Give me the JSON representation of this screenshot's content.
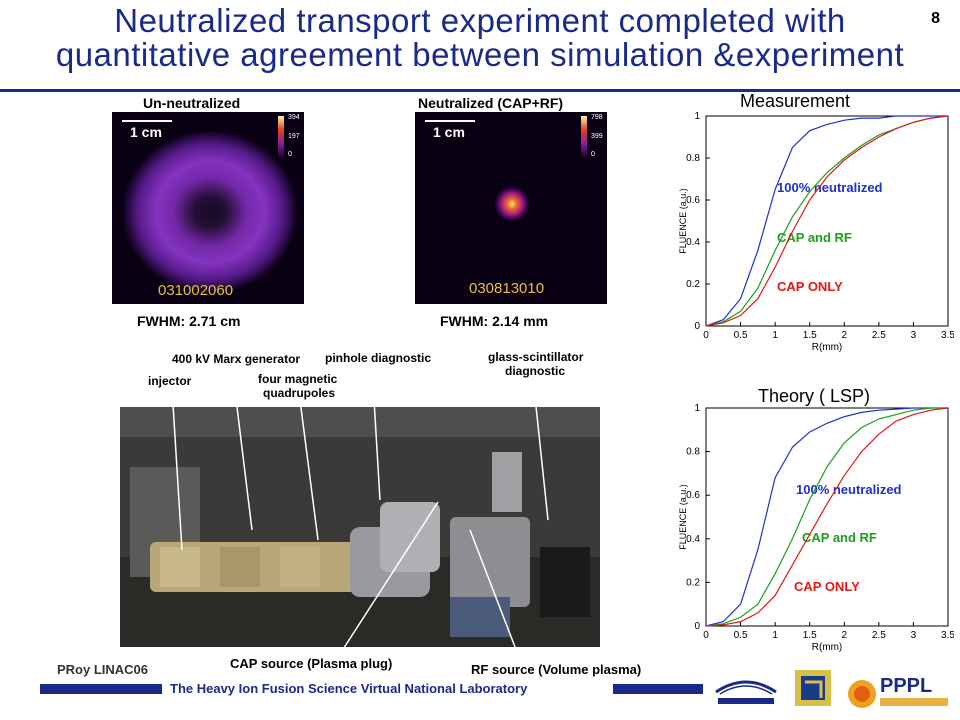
{
  "slide": {
    "title_line1": "Neutralized transport experiment completed with",
    "title_line2": "quantitative agreement between simulation &experiment",
    "number": "8"
  },
  "images": {
    "left": {
      "header": "Un-neutralized",
      "scale": "1 cm",
      "colorbar_max": "394",
      "colorbar_mid": "197",
      "colorbar_min": "0",
      "shot_id": "031002060",
      "fwhm": "FWHM: 2.71 cm"
    },
    "right": {
      "header": "Neutralized (CAP+RF)",
      "scale": "1 cm",
      "colorbar_max": "798",
      "colorbar_mid": "399",
      "colorbar_min": "0",
      "shot_id": "030813010",
      "fwhm": "FWHM: 2.14 mm"
    }
  },
  "photo_callouts": {
    "marx": "400 kV Marx generator",
    "pinhole": "pinhole diagnostic",
    "glass1": "glass-scintillator",
    "glass2": "diagnostic",
    "injector": "injector",
    "quads1": "four magnetic",
    "quads2": "quadrupoles",
    "cap_source": "CAP source (Plasma plug)",
    "rf_source": "RF source (Volume plasma)"
  },
  "footer": {
    "author": "PRoy LINAC06",
    "lab": "The Heavy Ion Fusion Science Virtual National Laboratory",
    "logos": [
      "BERKELEY LAB",
      "LLNL",
      "PPPL"
    ]
  },
  "colors": {
    "title": "#1a2a8a",
    "blue": "#1f2fd0",
    "green": "#1aa01a",
    "red": "#e01818"
  },
  "chart_data": [
    {
      "type": "line",
      "title": "Measurement",
      "xlabel": "R(mm)",
      "ylabel": "FLUENCE (a.u.)",
      "xlim": [
        0,
        3.5
      ],
      "ylim": [
        0,
        1
      ],
      "x_ticks": [
        "0",
        "0.5",
        "1",
        "1.5",
        "2",
        "2.5",
        "3",
        "3.5"
      ],
      "y_ticks": [
        "0",
        "0.2",
        "0.4",
        "0.6",
        "0.8",
        "1"
      ],
      "x": [
        0,
        0.25,
        0.5,
        0.75,
        1.0,
        1.25,
        1.5,
        1.75,
        2.0,
        2.25,
        2.5,
        2.75,
        3.0,
        3.25,
        3.5
      ],
      "series": [
        {
          "name": "100% neutralized",
          "color": "#1f2fd0",
          "values": [
            0,
            0.03,
            0.13,
            0.36,
            0.65,
            0.85,
            0.93,
            0.96,
            0.98,
            0.99,
            0.99,
            1.0,
            1.0,
            1.0,
            1.0
          ]
        },
        {
          "name": "CAP and RF",
          "color": "#1aa01a",
          "values": [
            0,
            0.02,
            0.07,
            0.18,
            0.36,
            0.52,
            0.64,
            0.73,
            0.8,
            0.86,
            0.91,
            0.94,
            0.97,
            0.99,
            1.0
          ]
        },
        {
          "name": "CAP ONLY",
          "color": "#e01818",
          "values": [
            0,
            0.015,
            0.05,
            0.13,
            0.28,
            0.45,
            0.6,
            0.71,
            0.79,
            0.85,
            0.9,
            0.94,
            0.97,
            0.99,
            1.0
          ]
        }
      ]
    },
    {
      "type": "line",
      "title": "Theory ( LSP)",
      "xlabel": "R(mm)",
      "ylabel": "FLUENCE (a.u.)",
      "xlim": [
        0,
        3.5
      ],
      "ylim": [
        0,
        1
      ],
      "x_ticks": [
        "0",
        "0.5",
        "1",
        "1.5",
        "2",
        "2.5",
        "3",
        "3.5"
      ],
      "y_ticks": [
        "0",
        "0.2",
        "0.4",
        "0.6",
        "0.8",
        "1"
      ],
      "x": [
        0,
        0.25,
        0.5,
        0.75,
        1.0,
        1.25,
        1.5,
        1.75,
        2.0,
        2.25,
        2.5,
        2.75,
        3.0,
        3.25,
        3.5
      ],
      "series": [
        {
          "name": "100% neutralized",
          "color": "#1f2fd0",
          "values": [
            0,
            0.02,
            0.1,
            0.35,
            0.68,
            0.82,
            0.89,
            0.93,
            0.96,
            0.98,
            0.99,
            0.995,
            1.0,
            1.0,
            1.0
          ]
        },
        {
          "name": "CAP and RF",
          "color": "#1aa01a",
          "values": [
            0,
            0.01,
            0.04,
            0.1,
            0.24,
            0.4,
            0.58,
            0.73,
            0.84,
            0.91,
            0.95,
            0.97,
            0.99,
            1.0,
            1.0
          ]
        },
        {
          "name": "CAP ONLY",
          "color": "#e01818",
          "values": [
            0,
            0.005,
            0.02,
            0.06,
            0.14,
            0.28,
            0.42,
            0.56,
            0.69,
            0.8,
            0.88,
            0.94,
            0.97,
            0.99,
            1.0
          ]
        }
      ]
    }
  ]
}
